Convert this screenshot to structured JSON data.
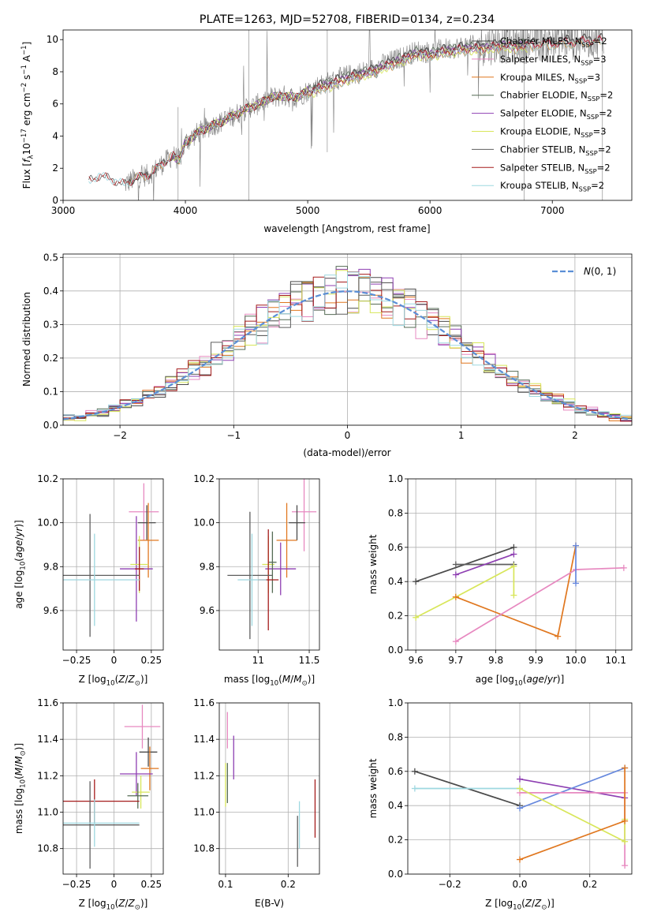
{
  "colors": {
    "Chabrier MILES": "#4a4a4a",
    "Salpeter MILES": "#e789c0",
    "Kroupa MILES": "#e0771f",
    "Chabrier ELODIE": "#556b55",
    "Salpeter ELODIE": "#8e3fb2",
    "Kroupa ELODIE": "#d8e65a",
    "Chabrier STELIB": "#5f5f5f",
    "Salpeter STELIB": "#a51c1c",
    "Kroupa STELIB": "#9ed8e0",
    "data": "#7f7f7f",
    "normal": "#5b8fd6",
    "blue": "#6688dd"
  },
  "chart_data": [
    {
      "id": "spectrum",
      "type": "line",
      "title": "PLATE=1263, MJD=52708, FIBERID=0134, z=0.234",
      "xlabel": "wavelength [Angstrom, rest frame]",
      "ylabel": "Flux [f_λ 10^-17 erg cm^-2 s^-1 A^-1]",
      "xlim": [
        3000,
        7650
      ],
      "ylim": [
        0,
        10.6
      ],
      "xticks": [
        3000,
        4000,
        5000,
        6000,
        7000
      ],
      "yticks": [
        0,
        2,
        4,
        6,
        8,
        10
      ],
      "grid": false,
      "legend_position": "top-right",
      "legend": [
        {
          "name": "Chabrier MILES, N",
          "sub": "SSP",
          "suffix": "=2"
        },
        {
          "name": "Salpeter MILES, N",
          "sub": "SSP",
          "suffix": "=3"
        },
        {
          "name": "Kroupa MILES, N",
          "sub": "SSP",
          "suffix": "=3"
        },
        {
          "name": "Chabrier ELODIE, N",
          "sub": "SSP",
          "suffix": "=2"
        },
        {
          "name": "Salpeter ELODIE, N",
          "sub": "SSP",
          "suffix": "=2"
        },
        {
          "name": "Kroupa ELODIE, N",
          "sub": "SSP",
          "suffix": "=3"
        },
        {
          "name": "Chabrier STELIB, N",
          "sub": "SSP",
          "suffix": "=2"
        },
        {
          "name": "Salpeter STELIB, N",
          "sub": "SSP",
          "suffix": "=2"
        },
        {
          "name": "Kroupa STELIB, N",
          "sub": "SSP",
          "suffix": "=2"
        }
      ],
      "continuum": [
        [
          3210,
          1.2
        ],
        [
          3300,
          1.55
        ],
        [
          3400,
          1.3
        ],
        [
          3500,
          1.0
        ],
        [
          3600,
          1.4
        ],
        [
          3700,
          1.6
        ],
        [
          3800,
          2.2
        ],
        [
          3900,
          2.8
        ],
        [
          3950,
          2.5
        ],
        [
          4000,
          3.6
        ],
        [
          4100,
          4.2
        ],
        [
          4200,
          4.6
        ],
        [
          4300,
          4.9
        ],
        [
          4400,
          5.3
        ],
        [
          4500,
          5.7
        ],
        [
          4600,
          6.0
        ],
        [
          4700,
          6.4
        ],
        [
          4800,
          6.5
        ],
        [
          4900,
          6.4
        ],
        [
          5000,
          6.8
        ],
        [
          5100,
          7.2
        ],
        [
          5200,
          7.4
        ],
        [
          5300,
          7.7
        ],
        [
          5400,
          7.9
        ],
        [
          5500,
          8.1
        ],
        [
          5600,
          8.4
        ],
        [
          5700,
          8.7
        ],
        [
          5800,
          9.0
        ],
        [
          5900,
          9.3
        ],
        [
          6000,
          9.2
        ],
        [
          6100,
          9.4
        ],
        [
          6200,
          9.5
        ],
        [
          6300,
          9.6
        ],
        [
          6400,
          9.6
        ],
        [
          6500,
          9.7
        ],
        [
          6600,
          9.8
        ],
        [
          6700,
          9.7
        ],
        [
          6800,
          9.8
        ],
        [
          6900,
          9.9
        ],
        [
          7000,
          9.9
        ],
        [
          7100,
          10.0
        ],
        [
          7200,
          10.0
        ],
        [
          7300,
          10.1
        ],
        [
          7400,
          10.1
        ]
      ],
      "data_range": [
        3500,
        7420
      ],
      "model_ranges": {
        "Chabrier MILES": [
          3540,
          7410
        ],
        "Salpeter MILES": [
          3540,
          7410
        ],
        "Kroupa MILES": [
          3540,
          7410
        ],
        "Chabrier ELODIE": [
          3900,
          6800
        ],
        "Salpeter ELODIE": [
          3900,
          6800
        ],
        "Kroupa ELODIE": [
          3900,
          6800
        ],
        "Chabrier STELIB": [
          3210,
          7410
        ],
        "Salpeter STELIB": [
          3210,
          7410
        ],
        "Kroupa STELIB": [
          3210,
          7410
        ]
      }
    },
    {
      "id": "residuals",
      "type": "bar",
      "xlabel": "(data-model)/error",
      "ylabel": "Normed distribution",
      "xlim": [
        -2.5,
        2.5
      ],
      "ylim": [
        0,
        0.51
      ],
      "xticks": [
        -2,
        -1,
        0,
        1,
        2
      ],
      "yticks": [
        0,
        0.1,
        0.2,
        0.3,
        0.4,
        0.5
      ],
      "grid": true,
      "legend_position": "top-right",
      "legend": [
        {
          "name": "N(0,1)"
        }
      ],
      "bin_width": 0.1,
      "histogram_series": [
        "Chabrier MILES",
        "Salpeter MILES",
        "Kroupa MILES",
        "Chabrier ELODIE",
        "Salpeter ELODIE",
        "Kroupa ELODIE",
        "Chabrier STELIB",
        "Salpeter STELIB",
        "Kroupa STELIB"
      ]
    },
    {
      "id": "age-Z",
      "type": "scatter",
      "xlabel": "Z [log10(Z/Z⊙)]",
      "ylabel": "age [log10(age/yr)]",
      "xlim": [
        -0.34,
        0.33
      ],
      "ylim": [
        9.42,
        10.2
      ],
      "xticks": [
        -0.25,
        0.0,
        0.25
      ],
      "yticks": [
        9.6,
        9.8,
        10.0,
        10.2
      ],
      "grid": true,
      "points": [
        {
          "series": "Salpeter MILES",
          "x": 0.2,
          "y": 10.05,
          "xerr": 0.1,
          "yerr": 0.13
        },
        {
          "series": "Chabrier MILES",
          "x": 0.22,
          "y": 10.0,
          "xerr": 0.06,
          "yerr": 0.08
        },
        {
          "series": "Kroupa MILES",
          "x": 0.23,
          "y": 9.92,
          "xerr": 0.07,
          "yerr": 0.17
        },
        {
          "series": "Salpeter ELODIE",
          "x": 0.15,
          "y": 9.79,
          "xerr": 0.11,
          "yerr": 0.24
        },
        {
          "series": "Kroupa ELODIE",
          "x": 0.17,
          "y": 9.81,
          "xerr": 0.06,
          "yerr": 0.13
        },
        {
          "series": "Salpeter STELIB",
          "x": 0.17,
          "y": 9.79,
          "xerr": 0.03,
          "yerr": 0.1
        },
        {
          "series": "Chabrier STELIB",
          "x": -0.16,
          "y": 9.76,
          "xerr": 0.33,
          "yerr": 0.28
        },
        {
          "series": "Kroupa STELIB",
          "x": -0.13,
          "y": 9.74,
          "xerr": 0.3,
          "yerr": 0.21
        }
      ]
    },
    {
      "id": "age-mass",
      "type": "scatter",
      "xlabel": "mass [log10(M/M⊙)]",
      "ylabel": "",
      "xlim": [
        10.62,
        11.6
      ],
      "ylim": [
        9.42,
        10.2
      ],
      "xticks": [
        11.0,
        11.5
      ],
      "yticks": [
        9.6,
        9.8,
        10.0,
        10.2
      ],
      "grid": true,
      "points": [
        {
          "series": "Salpeter MILES",
          "x": 11.45,
          "y": 10.05,
          "xerr": 0.12,
          "yerr": 0.18
        },
        {
          "series": "Chabrier MILES",
          "x": 11.38,
          "y": 10.0,
          "xerr": 0.08,
          "yerr": 0.08
        },
        {
          "series": "Kroupa MILES",
          "x": 11.28,
          "y": 9.92,
          "xerr": 0.1,
          "yerr": 0.17
        },
        {
          "series": "Salpeter ELODIE",
          "x": 11.22,
          "y": 9.79,
          "xerr": 0.15,
          "yerr": 0.12
        },
        {
          "series": "Kroupa ELODIE",
          "x": 11.1,
          "y": 9.81,
          "xerr": 0.06,
          "yerr": 0.13
        },
        {
          "series": "Chabrier ELODIE",
          "x": 11.14,
          "y": 9.82,
          "xerr": 0.04,
          "yerr": 0.14
        },
        {
          "series": "Salpeter STELIB",
          "x": 11.1,
          "y": 9.74,
          "xerr": 0.1,
          "yerr": 0.23
        },
        {
          "series": "Chabrier STELIB",
          "x": 10.92,
          "y": 9.76,
          "xerr": 0.22,
          "yerr": 0.29
        },
        {
          "series": "Kroupa STELIB",
          "x": 10.94,
          "y": 9.74,
          "xerr": 0.14,
          "yerr": 0.21
        }
      ]
    },
    {
      "id": "weight-age",
      "type": "line",
      "xlabel": "age [log10(age/yr)]",
      "ylabel": "mass weight",
      "xlim": [
        9.58,
        10.14
      ],
      "ylim": [
        0,
        1.0
      ],
      "xticks": [
        9.6,
        9.7,
        9.8,
        9.9,
        10.0,
        10.1
      ],
      "yticks": [
        0.0,
        0.2,
        0.4,
        0.6,
        0.8,
        1.0
      ],
      "grid": true,
      "series": [
        {
          "name": "Chabrier MILES",
          "points": [
            [
              9.6,
              0.4
            ],
            [
              9.845,
              0.6
            ]
          ]
        },
        {
          "name": "Chabrier STELIB",
          "points": [
            [
              9.7,
              0.5
            ],
            [
              9.845,
              0.5
            ]
          ]
        },
        {
          "name": "Salpeter ELODIE",
          "points": [
            [
              9.7,
              0.44
            ],
            [
              9.845,
              0.56
            ]
          ]
        },
        {
          "name": "Kroupa ELODIE",
          "points": [
            [
              9.6,
              0.19
            ],
            [
              9.7,
              0.31
            ],
            [
              9.845,
              0.49
            ],
            [
              9.845,
              0.32
            ]
          ]
        },
        {
          "name": "Kroupa MILES",
          "points": [
            [
              9.7,
              0.31
            ],
            [
              9.955,
              0.08
            ],
            [
              10.0,
              0.61
            ]
          ]
        },
        {
          "name": "Salpeter MILES",
          "points": [
            [
              9.7,
              0.05
            ],
            [
              10.0,
              0.47
            ],
            [
              10.12,
              0.48
            ]
          ]
        },
        {
          "name": "blue",
          "points": [
            [
              10.0,
              0.61
            ],
            [
              10.0,
              0.39
            ]
          ]
        }
      ]
    },
    {
      "id": "mass-Z",
      "type": "scatter",
      "xlabel": "Z [log10(Z/Z⊙)]",
      "ylabel": "mass [log10(M/M⊙)]",
      "xlim": [
        -0.34,
        0.33
      ],
      "ylim": [
        10.66,
        11.6
      ],
      "xticks": [
        -0.25,
        0.0,
        0.25
      ],
      "yticks": [
        10.8,
        11.0,
        11.2,
        11.4,
        11.6
      ],
      "grid": true,
      "points": [
        {
          "series": "Salpeter MILES",
          "x": 0.19,
          "y": 11.47,
          "xerr": 0.12,
          "yerr": 0.12
        },
        {
          "series": "Chabrier MILES",
          "x": 0.23,
          "y": 11.33,
          "xerr": 0.06,
          "yerr": 0.08
        },
        {
          "series": "Kroupa MILES",
          "x": 0.24,
          "y": 11.24,
          "xerr": 0.06,
          "yerr": 0.12
        },
        {
          "series": "Salpeter ELODIE",
          "x": 0.15,
          "y": 11.21,
          "xerr": 0.11,
          "yerr": 0.12
        },
        {
          "series": "Kroupa ELODIE",
          "x": 0.18,
          "y": 11.11,
          "xerr": 0.06,
          "yerr": 0.09
        },
        {
          "series": "Chabrier ELODIE",
          "x": 0.16,
          "y": 11.09,
          "xerr": 0.07,
          "yerr": 0.07
        },
        {
          "series": "Salpeter STELIB",
          "x": -0.13,
          "y": 11.06,
          "xerr": 0.3,
          "yerr": 0.12
        },
        {
          "series": "Chabrier STELIB",
          "x": -0.16,
          "y": 10.93,
          "xerr": 0.33,
          "yerr": 0.24
        },
        {
          "series": "Kroupa STELIB",
          "x": -0.13,
          "y": 10.94,
          "xerr": 0.3,
          "yerr": 0.13
        }
      ]
    },
    {
      "id": "mass-EBV",
      "type": "scatter",
      "xlabel": "E(B-V)",
      "ylabel": "",
      "xlim": [
        0.09,
        0.25
      ],
      "ylim": [
        10.66,
        11.6
      ],
      "xticks": [
        0.1,
        0.2
      ],
      "yticks": [
        10.8,
        11.0,
        11.2,
        11.4,
        11.6
      ],
      "grid": true,
      "points": [
        {
          "series": "Salpeter MILES",
          "x": 0.103,
          "y": 11.45,
          "xerr": 0,
          "yerr": 0.1
        },
        {
          "series": "Salpeter ELODIE",
          "x": 0.113,
          "y": 11.3,
          "xerr": 0,
          "yerr": 0.12
        },
        {
          "series": "Kroupa ELODIE",
          "x": 0.1,
          "y": 11.15,
          "xerr": 0,
          "yerr": 0.12
        },
        {
          "series": "Chabrier ELODIE",
          "x": 0.103,
          "y": 11.16,
          "xerr": 0,
          "yerr": 0.11
        },
        {
          "series": "Kroupa STELIB",
          "x": 0.218,
          "y": 10.93,
          "xerr": 0,
          "yerr": 0.13
        },
        {
          "series": "Chabrier STELIB",
          "x": 0.215,
          "y": 10.84,
          "xerr": 0,
          "yerr": 0.14
        },
        {
          "series": "Salpeter STELIB",
          "x": 0.243,
          "y": 11.02,
          "xerr": 0,
          "yerr": 0.16
        }
      ]
    },
    {
      "id": "weight-Z",
      "type": "line",
      "xlabel": "Z [log10(Z/Z⊙)]",
      "ylabel": "mass weight",
      "xlim": [
        -0.32,
        0.32
      ],
      "ylim": [
        0,
        1.0
      ],
      "xticks": [
        -0.2,
        0.0,
        0.2
      ],
      "yticks": [
        0.0,
        0.2,
        0.4,
        0.6,
        0.8,
        1.0
      ],
      "grid": true,
      "series": [
        {
          "name": "Chabrier MILES",
          "points": [
            [
              -0.3,
              0.6
            ],
            [
              0.0,
              0.4
            ]
          ]
        },
        {
          "name": "Kroupa STELIB",
          "points": [
            [
              -0.3,
              0.5
            ],
            [
              0.0,
              0.5
            ]
          ]
        },
        {
          "name": "Salpeter ELODIE",
          "points": [
            [
              0.0,
              0.555
            ],
            [
              0.3,
              0.445
            ]
          ]
        },
        {
          "name": "blue",
          "points": [
            [
              0.0,
              0.385
            ],
            [
              0.3,
              0.62
            ]
          ]
        },
        {
          "name": "Salpeter MILES",
          "points": [
            [
              0.0,
              0.475
            ],
            [
              0.3,
              0.475
            ],
            [
              0.3,
              0.05
            ]
          ]
        },
        {
          "name": "Kroupa ELODIE",
          "points": [
            [
              0.0,
              0.5
            ],
            [
              0.3,
              0.19
            ],
            [
              0.3,
              0.32
            ]
          ]
        },
        {
          "name": "Kroupa MILES",
          "points": [
            [
              0.0,
              0.085
            ],
            [
              0.3,
              0.31
            ],
            [
              0.3,
              0.62
            ]
          ]
        }
      ]
    }
  ]
}
